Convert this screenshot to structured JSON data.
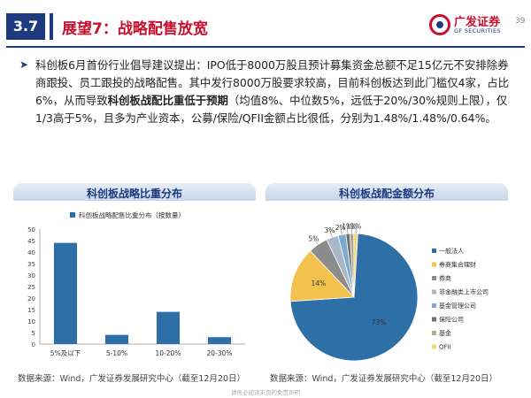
{
  "header": {
    "section": "3.7",
    "title": "展望7：战略配售放宽",
    "logo_cn": "广发证券",
    "logo_en": "GF SECURITIES",
    "page_number": "39"
  },
  "body": {
    "part1": "科创板6月首份行业倡导建议提出：IPO低于8000万股且预计募集资金总额不足15亿元不安排除券商跟投、员工跟投的战略配售。其中发行8000万股要求较高，目前科创板达到此门槛仅4家，占比6%，从而导致",
    "bold": "科创板战配比重低于预期",
    "part2": "（均值8%、中位数5%，远低于20%/30%规则上限），仅1/3高于5%，且多为产业资本，公募/保险/QFII金额占比很低，分别为1.48%/1.48%/0.64%。"
  },
  "left_panel": {
    "title": "科创板战略比重分布",
    "source": "数据来源：Wind，广发证券发展研究中心（截至12月20日）"
  },
  "right_panel": {
    "title": "科创板战配金额分布",
    "source": "数据来源：Wind，广发证券发展研究中心（截至12月20日）"
  },
  "footer": "请务必阅读末页的免责声明",
  "chart_data": [
    {
      "type": "bar",
      "legend": "科创板战略配售比重分布（按数量）",
      "categories": [
        "5%及以下",
        "5-10%",
        "10-20%",
        "20-30%"
      ],
      "values": [
        44,
        4,
        14,
        3
      ],
      "ylim": [
        0,
        50
      ],
      "yticks": [
        0,
        5,
        10,
        15,
        20,
        25,
        30,
        35,
        40,
        45,
        50
      ],
      "color": "#2e6fa7"
    },
    {
      "type": "pie",
      "labels": [
        "一般法人",
        "券商集合理财",
        "券商",
        "非金融类上市公司",
        "基金管理公司",
        "保险公司",
        "基金",
        "QFII"
      ],
      "values": [
        73,
        14,
        5,
        3,
        2,
        1,
        1,
        1
      ],
      "value_labels": [
        "73%",
        "14%",
        "5%",
        "3%",
        "2%",
        "1%",
        "1%",
        "1%"
      ],
      "colors": [
        "#2e6fa7",
        "#f2c14e",
        "#8c8c8c",
        "#a9b7c9",
        "#7fa8d1",
        "#6f6f6f",
        "#b3a78f",
        "#ecd97a"
      ]
    }
  ]
}
